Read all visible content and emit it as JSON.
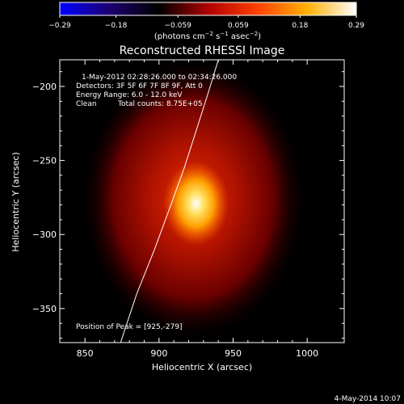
{
  "chart_data": {
    "type": "heatmap",
    "title": "Reconstructed RHESSI Image",
    "xlabel": "Heliocentric X (arcsec)",
    "ylabel": "Heliocentric Y (arcsec)",
    "xlim": [
      833,
      1025
    ],
    "ylim": [
      -373,
      -182
    ],
    "x_ticks": [
      850,
      900,
      950,
      1000
    ],
    "y_ticks": [
      -200,
      -250,
      -300,
      -350
    ],
    "x_tick_labels": [
      "850",
      "900",
      "950",
      "1000"
    ],
    "y_tick_labels": [
      "−200",
      "−250",
      "−300",
      "−350"
    ],
    "colorbar": {
      "range": [
        -0.29,
        0.29
      ],
      "ticks": [
        -0.29,
        -0.18,
        -0.059,
        0.059,
        0.18,
        0.29
      ],
      "tick_labels": [
        "−0.29",
        "−0.18",
        "−0.059",
        "0.059",
        "0.18",
        "0.29"
      ],
      "unit_label": "(photons cm",
      "unit_exp1": "−2",
      "unit_mid1": " s",
      "unit_exp2": "−1",
      "unit_mid2": " asec",
      "unit_exp3": "−2",
      "unit_end": ")",
      "colors": [
        "#0000ff",
        "#1d0070",
        "#000000",
        "#b00000",
        "#ff4000",
        "#ffb000",
        "#ffffff"
      ]
    },
    "annotations": {
      "time_range": "1-May-2012 02:28:26.000 to 02:34:26.000",
      "detectors": "Detectors: 3F 5F 6F 7F 8F 9F, Att 0",
      "energy": "Energy Range: 6.0 - 12.0 keV",
      "clean": "Clean",
      "total_counts": "Total counts: 8.75E+05",
      "peak": "Position of Peak = [925,-279]"
    },
    "source": {
      "peak_x": 925,
      "peak_y": -279,
      "core_radius_x": 10,
      "core_radius_y": 13,
      "halo_radius_x": 48,
      "halo_radius_y": 60,
      "peak_value": 0.29
    },
    "limb_curve": {
      "x": [
        874,
        885,
        897,
        908,
        917,
        925,
        933,
        940
      ],
      "y": [
        -373,
        -340,
        -310,
        -280,
        -255,
        -230,
        -205,
        -182
      ]
    },
    "footer": "4-May-2014 10:07"
  }
}
